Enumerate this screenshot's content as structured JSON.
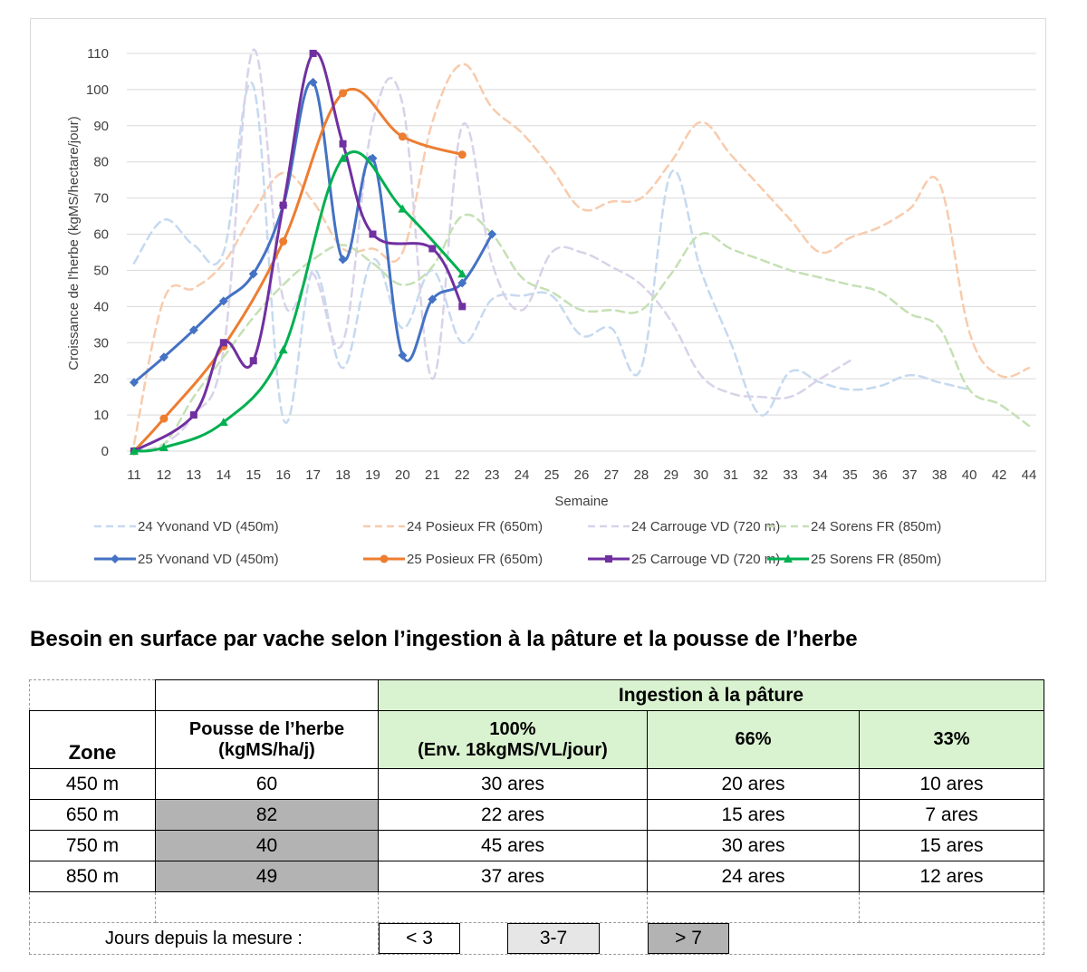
{
  "chart_data": {
    "type": "line",
    "xlabel": "Semaine",
    "ylabel": "Croissance de l'herbe (kgMS/hectare/jour)",
    "x_categories": [
      "11",
      "12",
      "13",
      "14",
      "15",
      "16",
      "17",
      "18",
      "19",
      "20",
      "21",
      "22",
      "23",
      "24",
      "25",
      "26",
      "27",
      "28",
      "29",
      "30",
      "31",
      "32",
      "33",
      "34",
      "35",
      "36",
      "37",
      "38",
      "40",
      "42",
      "44"
    ],
    "y_ticks": [
      0,
      10,
      20,
      30,
      40,
      50,
      60,
      70,
      80,
      90,
      100,
      110
    ],
    "ylim": [
      0,
      115
    ],
    "grid": true,
    "legend_position": "bottom",
    "series": [
      {
        "name": "24 Yvonand VD (450m)",
        "color": "#c6d9f0",
        "style": "dashed",
        "marker": "none",
        "values": [
          52,
          64,
          57,
          55,
          101,
          9,
          50,
          23,
          53,
          34,
          50,
          30,
          42,
          43,
          43,
          32,
          34,
          23,
          77,
          50,
          30,
          10,
          22,
          19,
          17,
          18,
          21,
          19,
          17,
          null,
          null
        ]
      },
      {
        "name": "24 Posieux FR (650m)",
        "color": "#f8cbad",
        "style": "dashed",
        "marker": "none",
        "values": [
          2,
          42,
          45,
          52,
          66,
          77,
          69,
          56,
          56,
          55,
          91,
          107,
          95,
          88,
          78,
          67,
          69,
          70,
          80,
          91,
          82,
          73,
          64,
          55,
          59,
          62,
          67,
          74,
          33,
          21,
          23
        ]
      },
      {
        "name": "24 Carrouge VD (720 m)",
        "color": "#d9d2e9",
        "style": "dashed",
        "marker": "none",
        "values": [
          0,
          2,
          10,
          28,
          111,
          42,
          49,
          30,
          91,
          96,
          20,
          90,
          52,
          39,
          55,
          55,
          51,
          46,
          36,
          21,
          16,
          15,
          15,
          20,
          25,
          null,
          null,
          null,
          null,
          null,
          null
        ]
      },
      {
        "name": "24 Sorens FR (850m)",
        "color": "#c5e0b4",
        "style": "dashed",
        "marker": "none",
        "values": [
          0,
          2,
          15,
          26,
          37,
          46,
          53,
          57,
          52,
          46,
          51,
          65,
          60,
          48,
          44,
          39,
          39,
          39,
          49,
          60,
          56,
          53,
          50,
          48,
          46,
          44,
          38,
          34,
          17,
          13,
          7
        ]
      },
      {
        "name": "25 Yvonand VD (450m)",
        "color": "#4472c4",
        "style": "solid",
        "marker": "diamond",
        "values": [
          19,
          26,
          33.5,
          41.5,
          49,
          68,
          102,
          53,
          81,
          26.5,
          42,
          46.5,
          60,
          null,
          null,
          null,
          null,
          null,
          null,
          null,
          null,
          null,
          null,
          null,
          null,
          null,
          null,
          null,
          null,
          null,
          null
        ]
      },
      {
        "name": "25 Posieux FR (650m)",
        "color": "#ed7d31",
        "style": "solid",
        "marker": "circle",
        "values": [
          0,
          9,
          null,
          29,
          null,
          58,
          null,
          99,
          null,
          87,
          null,
          82,
          null,
          null,
          null,
          null,
          null,
          null,
          null,
          null,
          null,
          null,
          null,
          null,
          null,
          null,
          null,
          null,
          null,
          null,
          null
        ]
      },
      {
        "name": "25 Carrouge VD (720 m)",
        "color": "#7030a0",
        "style": "solid",
        "marker": "square",
        "values": [
          0,
          null,
          10,
          30,
          25,
          68,
          110,
          85,
          60,
          null,
          56,
          40,
          null,
          null,
          null,
          null,
          null,
          null,
          null,
          null,
          null,
          null,
          null,
          null,
          null,
          null,
          null,
          null,
          null,
          null,
          null
        ]
      },
      {
        "name": "25 Sorens FR (850m)",
        "color": "#00b050",
        "style": "solid",
        "marker": "triangle",
        "values": [
          0,
          1,
          null,
          8,
          null,
          28,
          null,
          81,
          null,
          67,
          null,
          49,
          null,
          null,
          null,
          null,
          null,
          null,
          null,
          null,
          null,
          null,
          null,
          null,
          null,
          null,
          null,
          null,
          null,
          null,
          null
        ]
      }
    ]
  },
  "table": {
    "title": "Besoin en surface par vache selon l’ingestion à la pâture et la pousse de l’herbe",
    "ingestion_header": "Ingestion à la pâture",
    "col_zone": "Zone",
    "col_pousse_line1": "Pousse de l’herbe",
    "col_pousse_line2": "(kgMS/ha/j)",
    "col_100_line1": "100%",
    "col_100_line2": "(Env. 18kgMS/VL/jour)",
    "col_66": "66%",
    "col_33": "33%",
    "rows": [
      {
        "zone": "450 m",
        "pousse": "60",
        "c100": "30 ares",
        "c66": "20 ares",
        "c33": "10 ares",
        "shade": "white"
      },
      {
        "zone": "650 m",
        "pousse": "82",
        "c100": "22 ares",
        "c66": "15 ares",
        "c33": "7 ares",
        "shade": "gray"
      },
      {
        "zone": "750 m",
        "pousse": "40",
        "c100": "45 ares",
        "c66": "30 ares",
        "c33": "15 ares",
        "shade": "gray"
      },
      {
        "zone": "850 m",
        "pousse": "49",
        "c100": "37 ares",
        "c66": "24 ares",
        "c33": "12 ares",
        "shade": "gray"
      }
    ],
    "legend_label": "Jours depuis la mesure :",
    "legend_lt3": "< 3",
    "legend_3_7": "3-7",
    "legend_gt7": "> 7"
  }
}
